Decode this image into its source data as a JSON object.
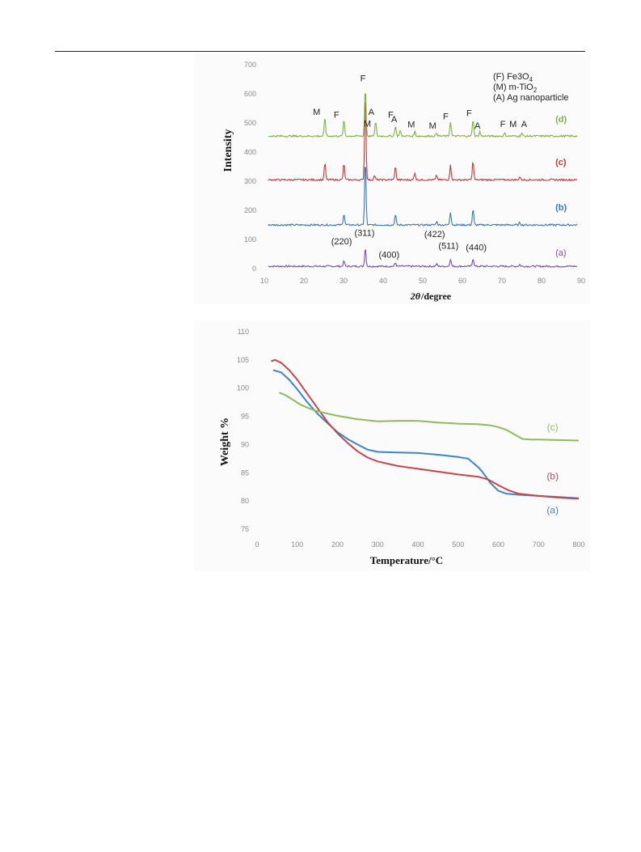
{
  "chart_data": [
    {
      "type": "line",
      "xlabel_prefix": "2θ",
      "xlabel_suffix": "/degree",
      "ylabel": "Intensity",
      "xlim": [
        10,
        90
      ],
      "ylim": [
        0,
        700
      ],
      "x_ticks": [
        "10",
        "20",
        "30",
        "40",
        "50",
        "60",
        "70",
        "80",
        "90"
      ],
      "y_ticks": [
        "0",
        "100",
        "200",
        "300",
        "400",
        "500",
        "600",
        "700"
      ],
      "legend": [
        "(F) Fe3O4",
        "(M) m-TiO2",
        "(A) Ag nanoparticle"
      ],
      "series": [
        {
          "name": "(a)",
          "color": "#7b4fa3",
          "baseline": 8,
          "label_y": 45,
          "peaks": [
            [
              30.1,
              18
            ],
            [
              35.5,
              65
            ],
            [
              43.1,
              12
            ],
            [
              53.5,
              8
            ],
            [
              57.0,
              25
            ],
            [
              62.7,
              28
            ],
            [
              74.5,
              6
            ]
          ]
        },
        {
          "name": "(b)",
          "color": "#3a76b8",
          "baseline": 150,
          "label_y": 200,
          "peaks": [
            [
              30.1,
              40
            ],
            [
              35.5,
              230
            ],
            [
              43.1,
              35
            ],
            [
              53.5,
              12
            ],
            [
              57.0,
              45
            ],
            [
              62.7,
              55
            ],
            [
              74.5,
              8
            ]
          ]
        },
        {
          "name": "(c)",
          "color": "#c0393b",
          "baseline": 305,
          "label_y": 355,
          "peaks": [
            [
              25.3,
              60
            ],
            [
              30.1,
              55
            ],
            [
              35.5,
              310
            ],
            [
              37.8,
              15
            ],
            [
              43.1,
              45
            ],
            [
              48.0,
              25
            ],
            [
              53.5,
              15
            ],
            [
              57.0,
              50
            ],
            [
              62.7,
              65
            ],
            [
              74.5,
              10
            ]
          ]
        },
        {
          "name": "(d)",
          "color": "#7fb04a",
          "baseline": 455,
          "label_y": 503,
          "peaks": [
            [
              25.3,
              65
            ],
            [
              30.1,
              55
            ],
            [
              35.5,
              170
            ],
            [
              38.1,
              50
            ],
            [
              43.1,
              35
            ],
            [
              44.3,
              20
            ],
            [
              48.0,
              15
            ],
            [
              53.5,
              12
            ],
            [
              57.0,
              50
            ],
            [
              62.7,
              60
            ],
            [
              64.4,
              15
            ],
            [
              70.7,
              10
            ],
            [
              75.0,
              10
            ]
          ]
        }
      ],
      "phase_marks": [
        {
          "text": "M",
          "x": 23.2,
          "y": 528
        },
        {
          "text": "F",
          "x": 28.2,
          "y": 518
        },
        {
          "text": "F",
          "x": 34.9,
          "y": 643
        },
        {
          "text": "M",
          "x": 36.0,
          "y": 488
        },
        {
          "text": "A",
          "x": 37.0,
          "y": 528
        },
        {
          "text": "F",
          "x": 41.9,
          "y": 518
        },
        {
          "text": "A",
          "x": 42.8,
          "y": 503
        },
        {
          "text": "M",
          "x": 47.1,
          "y": 485
        },
        {
          "text": "M",
          "x": 52.5,
          "y": 481
        },
        {
          "text": "F",
          "x": 55.8,
          "y": 513
        },
        {
          "text": "F",
          "x": 61.7,
          "y": 523
        },
        {
          "text": "A",
          "x": 63.8,
          "y": 481
        },
        {
          "text": "F",
          "x": 70.2,
          "y": 486
        },
        {
          "text": "M",
          "x": 72.8,
          "y": 486
        },
        {
          "text": "A",
          "x": 75.6,
          "y": 486
        }
      ],
      "hkl_labels": [
        {
          "text": "(220)",
          "x": 29.5,
          "y": 83
        },
        {
          "text": "(311)",
          "x": 35.3,
          "y": 113
        },
        {
          "text": "(400)",
          "x": 41.5,
          "y": 38
        },
        {
          "text": "(422)",
          "x": 53.0,
          "y": 108
        },
        {
          "text": "(511)",
          "x": 56.5,
          "y": 68
        },
        {
          "text": "(440)",
          "x": 63.5,
          "y": 63
        }
      ]
    },
    {
      "type": "line",
      "xlabel": "Temperature/°C",
      "ylabel": "Weight %",
      "xlim": [
        0,
        800
      ],
      "ylim": [
        75,
        110
      ],
      "x_ticks": [
        "0",
        "100",
        "200",
        "300",
        "400",
        "500",
        "600",
        "700",
        "800"
      ],
      "y_ticks": [
        "75",
        "80",
        "85",
        "90",
        "95",
        "100",
        "105",
        "110"
      ],
      "series": [
        {
          "name": "(a)",
          "color": "#3a86c8",
          "label_x": 735,
          "label_y": 77.8,
          "x": [
            40,
            60,
            80,
            100,
            125,
            150,
            175,
            200,
            225,
            250,
            275,
            300,
            350,
            400,
            450,
            500,
            525,
            550,
            560,
            580,
            600,
            620,
            650,
            700,
            750,
            800
          ],
          "y": [
            103.2,
            102.8,
            101.5,
            99.8,
            97.5,
            95.5,
            93.8,
            92.2,
            91.0,
            90.0,
            89.1,
            88.7,
            88.6,
            88.5,
            88.2,
            87.8,
            87.5,
            86.0,
            85.2,
            83.2,
            81.8,
            81.3,
            81.1,
            80.9,
            80.7,
            80.5
          ]
        },
        {
          "name": "(b)",
          "color": "#c8454a",
          "label_x": 735,
          "label_y": 83.8,
          "x": [
            35,
            45,
            60,
            80,
            100,
            125,
            150,
            175,
            200,
            225,
            250,
            275,
            300,
            350,
            400,
            450,
            500,
            550,
            575,
            600,
            625,
            650,
            700,
            750,
            800
          ],
          "y": [
            104.8,
            105.0,
            104.5,
            103.2,
            101.5,
            99.0,
            96.5,
            94.0,
            92.0,
            90.3,
            88.8,
            87.7,
            87.0,
            86.2,
            85.7,
            85.2,
            84.7,
            84.3,
            83.8,
            82.8,
            81.9,
            81.3,
            80.9,
            80.6,
            80.4
          ]
        },
        {
          "name": "(c)",
          "color": "#8bbd5c",
          "label_x": 735,
          "label_y": 92.5,
          "x": [
            55,
            70,
            90,
            110,
            130,
            150,
            175,
            200,
            250,
            300,
            350,
            400,
            450,
            500,
            550,
            580,
            600,
            620,
            640,
            660,
            680,
            700,
            750,
            800
          ],
          "y": [
            99.2,
            98.8,
            97.9,
            97.0,
            96.4,
            95.9,
            95.5,
            95.1,
            94.5,
            94.1,
            94.2,
            94.2,
            93.9,
            93.7,
            93.6,
            93.4,
            93.1,
            92.6,
            91.8,
            91.0,
            90.9,
            90.9,
            90.8,
            90.7
          ]
        }
      ]
    }
  ]
}
